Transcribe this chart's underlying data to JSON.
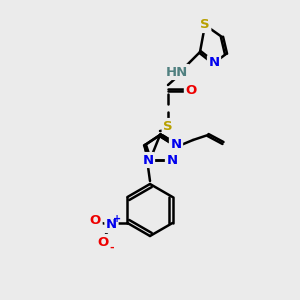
{
  "bg_color": "#ebebeb",
  "bond_color": "#000000",
  "bond_width": 1.8,
  "atom_colors": {
    "S": "#b8a000",
    "N": "#0000ee",
    "O": "#ee0000",
    "C": "#000000",
    "H": "#508080"
  },
  "font_size": 9.5,
  "small_font_size": 8.5
}
